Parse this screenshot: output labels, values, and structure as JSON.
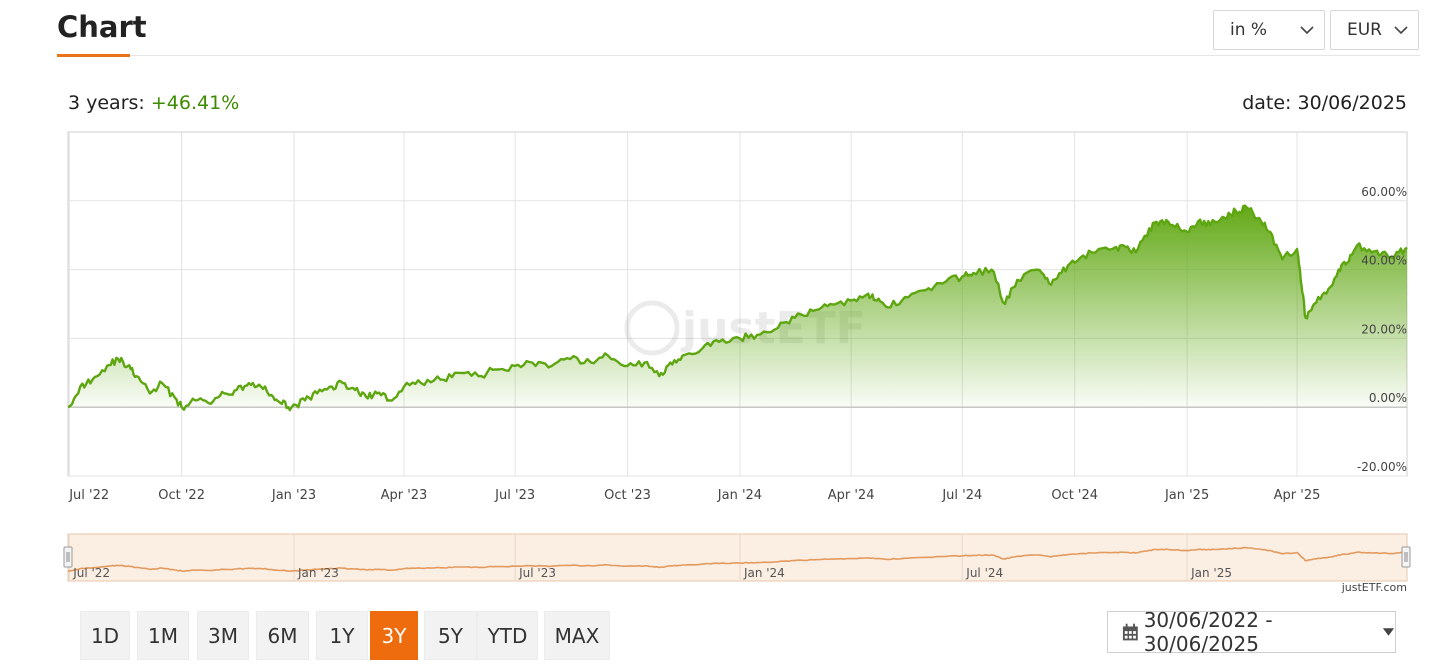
{
  "header": {
    "title": "Chart"
  },
  "controls": {
    "unit_label": "in %",
    "currency_label": "EUR"
  },
  "summary": {
    "period_label": "3 years:",
    "period_value": "+46.41%",
    "date_label": "date: 30/06/2025"
  },
  "watermark": "justETF",
  "credit": "justETF.com",
  "range_buttons": [
    "1D",
    "1M",
    "3M",
    "6M",
    "1Y",
    "3Y",
    "5Y",
    "YTD",
    "MAX"
  ],
  "active_range": "3Y",
  "date_range": "30/06/2022 - 30/06/2025",
  "colors": {
    "accent": "#ee6c0d",
    "line": "#5ea610",
    "positive": "#3d8c00",
    "navigator_line": "#e39a5e",
    "navigator_fill": "#fbeee3"
  },
  "chart_data": {
    "type": "area",
    "xlabel": "",
    "ylabel": "",
    "ylim": [
      -20,
      80
    ],
    "y_ticks": [
      -20,
      0,
      20,
      40,
      60
    ],
    "y_tick_labels": [
      "-20.00%",
      "0.00%",
      "20.00%",
      "40.00%",
      "60.00%"
    ],
    "x_tick_labels": [
      "Jul '22",
      "Oct '22",
      "Jan '23",
      "Apr '23",
      "Jul '23",
      "Oct '23",
      "Jan '24",
      "Apr '24",
      "Jul '24",
      "Oct '24",
      "Jan '25",
      "Apr '25"
    ],
    "x_tick_dates": [
      "2022-07-01",
      "2022-10-01",
      "2023-01-01",
      "2023-04-01",
      "2023-07-01",
      "2023-10-01",
      "2024-01-01",
      "2024-04-01",
      "2024-07-01",
      "2024-10-01",
      "2025-01-01",
      "2025-04-01"
    ],
    "x_range": [
      "2022-06-30",
      "2025-06-30"
    ],
    "grid": true,
    "navigator_labels": [
      "Jul '22",
      "Jan '23",
      "Jul '23",
      "Jan '24",
      "Jul '24",
      "Jan '25"
    ],
    "navigator_label_dates": [
      "2022-07-01",
      "2023-01-01",
      "2023-07-01",
      "2024-01-01",
      "2024-07-01",
      "2025-01-01"
    ],
    "series": [
      {
        "x": [
          "2022-06-30",
          "2022-07-10",
          "2022-07-20",
          "2022-08-01",
          "2022-08-10",
          "2022-08-18",
          "2022-08-25",
          "2022-09-05",
          "2022-09-15",
          "2022-09-25",
          "2022-10-01",
          "2022-10-12",
          "2022-10-25",
          "2022-11-05",
          "2022-11-15",
          "2022-11-25",
          "2022-12-05",
          "2022-12-15",
          "2022-12-22",
          "2022-12-30",
          "2023-01-10",
          "2023-01-20",
          "2023-02-01",
          "2023-02-10",
          "2023-02-20",
          "2023-03-01",
          "2023-03-10",
          "2023-03-20",
          "2023-04-01",
          "2023-04-15",
          "2023-05-01",
          "2023-05-15",
          "2023-06-01",
          "2023-06-15",
          "2023-07-01",
          "2023-07-15",
          "2023-07-31",
          "2023-08-15",
          "2023-09-01",
          "2023-09-15",
          "2023-10-01",
          "2023-10-15",
          "2023-10-27",
          "2023-11-05",
          "2023-11-15",
          "2023-12-01",
          "2023-12-15",
          "2024-01-01",
          "2024-01-15",
          "2024-02-01",
          "2024-02-15",
          "2024-03-01",
          "2024-03-15",
          "2024-04-01",
          "2024-04-15",
          "2024-04-22",
          "2024-05-01",
          "2024-05-15",
          "2024-06-01",
          "2024-06-15",
          "2024-07-01",
          "2024-07-10",
          "2024-07-25",
          "2024-08-05",
          "2024-08-15",
          "2024-09-01",
          "2024-09-10",
          "2024-09-20",
          "2024-10-01",
          "2024-10-15",
          "2024-11-01",
          "2024-11-10",
          "2024-11-20",
          "2024-12-01",
          "2024-12-10",
          "2024-12-20",
          "2025-01-01",
          "2025-01-10",
          "2025-01-20",
          "2025-02-01",
          "2025-02-10",
          "2025-02-19",
          "2025-03-01",
          "2025-03-10",
          "2025-03-20",
          "2025-04-01",
          "2025-04-04",
          "2025-04-08",
          "2025-04-15",
          "2025-04-25",
          "2025-05-05",
          "2025-05-12",
          "2025-05-20",
          "2025-06-01",
          "2025-06-10",
          "2025-06-20",
          "2025-06-30"
        ],
        "y": [
          0,
          6,
          8,
          12,
          14,
          12,
          9,
          4,
          7,
          3,
          0,
          2,
          1,
          4,
          5,
          7,
          6,
          3,
          1,
          0,
          2,
          4,
          6,
          7,
          5,
          3,
          4,
          2,
          6,
          7,
          8,
          10,
          9,
          11,
          12,
          13,
          12,
          14,
          13,
          15,
          12,
          13,
          9,
          13,
          15,
          17,
          19,
          20,
          21,
          23,
          26,
          28,
          30,
          31,
          33,
          31,
          29,
          32,
          34,
          36,
          38,
          39,
          40,
          30,
          37,
          40,
          36,
          39,
          42,
          45,
          46,
          47,
          45,
          52,
          54,
          53,
          51,
          54,
          53,
          55,
          57,
          58,
          55,
          51,
          43,
          46,
          37,
          26,
          30,
          33,
          40,
          42,
          47,
          45,
          45,
          44,
          46.4
        ]
      }
    ]
  }
}
